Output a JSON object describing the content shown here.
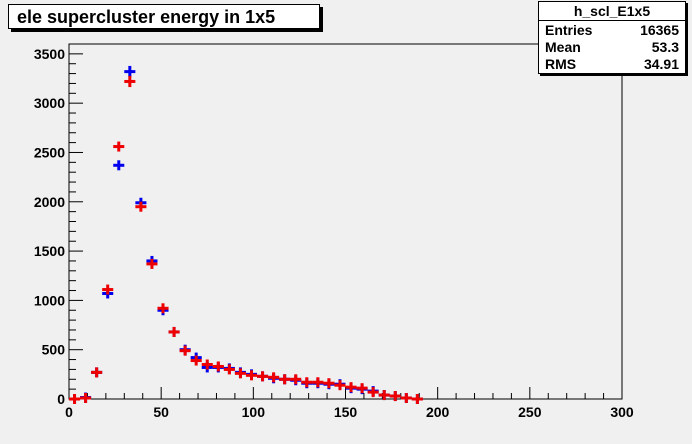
{
  "title": "ele supercluster energy in 1x5",
  "stats": {
    "name": "h_scl_E1x5",
    "rows": [
      {
        "label": "Entries",
        "value": "16365"
      },
      {
        "label": "Mean",
        "value": "53.3"
      },
      {
        "label": "RMS",
        "value": "34.91"
      }
    ]
  },
  "chart_data": {
    "type": "scatter",
    "title": "ele supercluster energy in 1x5",
    "xlim": [
      0,
      300
    ],
    "ylim": [
      0,
      3600
    ],
    "x_ticks": [
      0,
      50,
      100,
      150,
      200,
      250,
      300
    ],
    "y_ticks": [
      0,
      500,
      1000,
      1500,
      2000,
      2500,
      3000,
      3500
    ],
    "bin_width": 6,
    "grid": false,
    "legend": "none",
    "series": [
      {
        "color": "#0000ee",
        "x": [
          3,
          9,
          15,
          21,
          27,
          33,
          39,
          45,
          51,
          57,
          63,
          69,
          75,
          81,
          87,
          93,
          99,
          105,
          111,
          117,
          123,
          129,
          135,
          141,
          147,
          153,
          159,
          165,
          171,
          177,
          183,
          189
        ],
        "y": [
          0,
          15,
          270,
          1070,
          2370,
          3320,
          1990,
          1400,
          900,
          680,
          500,
          420,
          320,
          320,
          310,
          270,
          250,
          230,
          210,
          200,
          190,
          160,
          160,
          150,
          150,
          110,
          100,
          80,
          40,
          30,
          10,
          0
        ]
      },
      {
        "color": "#ee0000",
        "x": [
          3,
          9,
          15,
          21,
          27,
          33,
          39,
          45,
          51,
          57,
          63,
          69,
          75,
          81,
          87,
          93,
          99,
          105,
          111,
          117,
          123,
          129,
          135,
          141,
          147,
          153,
          159,
          165,
          171,
          177,
          183,
          189
        ],
        "y": [
          0,
          10,
          270,
          1110,
          2560,
          3220,
          1950,
          1370,
          920,
          680,
          490,
          390,
          350,
          330,
          300,
          260,
          240,
          230,
          220,
          200,
          200,
          170,
          170,
          160,
          140,
          120,
          110,
          70,
          40,
          30,
          10,
          0
        ]
      }
    ]
  }
}
